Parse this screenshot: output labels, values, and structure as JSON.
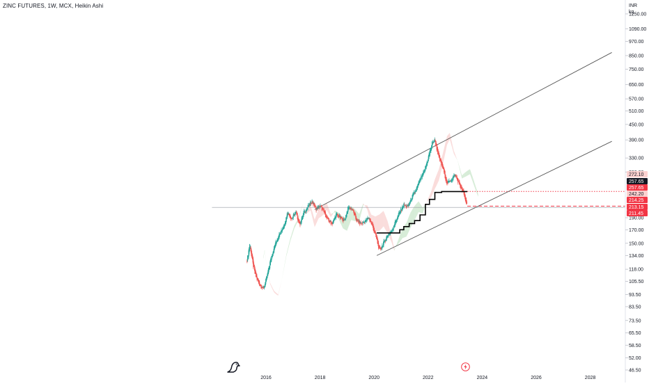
{
  "header": {
    "title": "ZINC FUTURES, 1W, MCX, Heikin Ashi",
    "currency": "INR",
    "unit": "kg"
  },
  "icons": {
    "logo": "tradingview-dino-icon",
    "event": "lightning-event-icon"
  },
  "colors": {
    "up": "#26a69a",
    "down": "#ef5350",
    "cloud_up": "#c8e6c9",
    "cloud_down": "#f8d0cf",
    "baseline": "#000000",
    "channel": "#555555",
    "price_tag_red": "#f23645",
    "price_tag_black": "#131722"
  },
  "chart_data": {
    "type": "line",
    "title": "ZINC FUTURES, 1W, MCX, Heikin Ashi",
    "scale": "log",
    "ylim": [
      46.5,
      1350
    ],
    "xlim": [
      2014.0,
      2029.0
    ],
    "x_ticks": [
      "2016",
      "2018",
      "2020",
      "2022",
      "2024",
      "2026",
      "2028"
    ],
    "y_ticks": [
      "1250.00",
      "1090.00",
      "970.00",
      "850.00",
      "750.00",
      "650.00",
      "570.00",
      "510.00",
      "450.00",
      "390.00",
      "330.00",
      "290.00",
      "190.00",
      "170.00",
      "150.00",
      "134.00",
      "118.00",
      "105.50",
      "93.50",
      "83.50",
      "73.50",
      "65.50",
      "58.50",
      "52.00",
      "46.50"
    ],
    "price_labels": [
      {
        "text": "272.10",
        "style": "light-red"
      },
      {
        "text": "257.65",
        "style": "black"
      },
      {
        "text": "257.65",
        "style": "red"
      },
      {
        "text": "242.20",
        "style": "light-red"
      },
      {
        "text": "214.25",
        "style": "red"
      },
      {
        "text": "213.15",
        "style": "red"
      },
      {
        "text": "211.45",
        "style": "red"
      }
    ],
    "series": [
      {
        "kind": "heikin-ashi-close",
        "x": [
          2015.3,
          2015.4,
          2015.5,
          2015.6,
          2015.75,
          2015.9,
          2016.05,
          2016.2,
          2016.35,
          2016.5,
          2016.65,
          2016.8,
          2016.95,
          2017.1,
          2017.25,
          2017.4,
          2017.55,
          2017.7,
          2017.85,
          2018.0,
          2018.15,
          2018.3,
          2018.45,
          2018.6,
          2018.75,
          2018.9,
          2019.05,
          2019.2,
          2019.35,
          2019.5,
          2019.65,
          2019.8,
          2019.95,
          2020.1,
          2020.2,
          2020.35,
          2020.5,
          2020.65,
          2020.8,
          2020.95,
          2021.1,
          2021.25,
          2021.4,
          2021.55,
          2021.7,
          2021.85,
          2022.0,
          2022.15,
          2022.25,
          2022.4,
          2022.55,
          2022.7,
          2022.85,
          2023.0,
          2023.15,
          2023.3,
          2023.45
        ],
        "values": [
          128,
          150,
          126,
          112,
          103,
          98,
          112,
          133,
          150,
          165,
          175,
          200,
          188,
          200,
          178,
          200,
          210,
          222,
          205,
          212,
          200,
          185,
          180,
          196,
          190,
          185,
          210,
          205,
          185,
          180,
          183,
          190,
          175,
          155,
          140,
          150,
          162,
          168,
          185,
          200,
          215,
          210,
          230,
          245,
          270,
          290,
          330,
          380,
          390,
          330,
          300,
          260,
          270,
          282,
          260,
          240,
          211.45
        ]
      },
      {
        "kind": "kijun-baseline",
        "x": [
          2020.1,
          2020.3,
          2020.5,
          2020.65,
          2020.8,
          2020.95,
          2021.1,
          2021.3,
          2021.5,
          2021.7,
          2021.9,
          2022.05,
          2022.25,
          2022.5,
          2022.8,
          2023.1,
          2023.45
        ],
        "values": [
          165,
          165,
          165,
          165,
          165,
          170,
          175,
          180,
          185,
          195,
          215,
          225,
          240,
          242,
          242,
          242,
          242
        ]
      }
    ],
    "channel_lines": [
      {
        "x": [
          2017.8,
          2028.8
        ],
        "values": [
          205,
          875
        ]
      },
      {
        "x": [
          2020.1,
          2028.8
        ],
        "values": [
          134,
          385
        ]
      }
    ],
    "horizontal_levels": [
      {
        "value": 242.2,
        "style": "dotted-red",
        "x_start": 2023.45
      },
      {
        "value": 211.45,
        "style": "dashed-red",
        "x_start": 2023.45
      },
      {
        "value": 209.0,
        "style": "solid-gray",
        "x_start": 2014.0
      }
    ]
  }
}
